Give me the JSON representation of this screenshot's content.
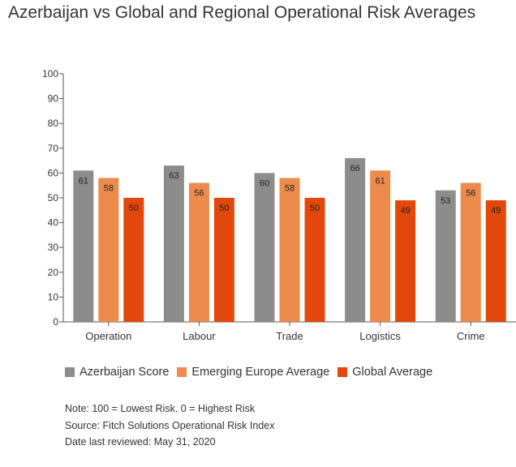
{
  "title": "Azerbaijan vs Global and Regional Operational Risk Averages",
  "colors": {
    "azerbaijan": "#8c8c8c",
    "emerging_europe": "#ec8b4b",
    "global": "#e2480b",
    "axis": "#555555"
  },
  "chart_data": {
    "type": "bar",
    "title": "Azerbaijan vs Global and Regional Operational Risk Averages",
    "categories": [
      "Operation",
      "Labour",
      "Trade",
      "Logistics",
      "Crime"
    ],
    "series": [
      {
        "name": "Azerbaijan Score",
        "values": [
          61,
          63,
          60,
          66,
          53
        ]
      },
      {
        "name": "Emerging Europe Average",
        "values": [
          58,
          56,
          58,
          61,
          56
        ]
      },
      {
        "name": "Global Average",
        "values": [
          50,
          50,
          50,
          49,
          49
        ]
      }
    ],
    "ylim": [
      0,
      100
    ],
    "yticks": [
      0,
      10,
      20,
      30,
      40,
      50,
      60,
      70,
      80,
      90,
      100
    ],
    "grid": false,
    "legend_position": "bottom-left"
  },
  "legend": [
    "Azerbaijan Score",
    "Emerging Europe Average",
    "Global Average"
  ],
  "notes": {
    "note": "Note: 100 = Lowest Risk. 0 = Highest Risk",
    "source": "Source: Fitch Solutions Operational Risk Index",
    "reviewed": "Date last reviewed: May 31, 2020"
  }
}
